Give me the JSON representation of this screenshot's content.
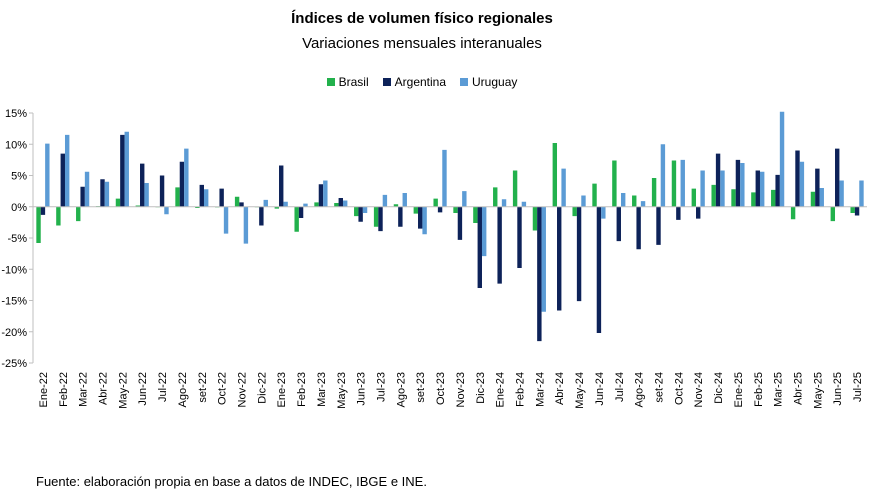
{
  "title": "Índices de volumen físico regionales",
  "subtitle": "Variaciones mensuales interanuales",
  "source": "Fuente: elaboración propia en base a datos de INDEC, IBGE e INE.",
  "colors": {
    "Brasil": "#22b14c",
    "Argentina": "#0d2259",
    "Uruguay": "#5b9bd5"
  },
  "chart_data": {
    "type": "bar",
    "title": "Índices de volumen físico regionales",
    "subtitle": "Variaciones mensuales interanuales",
    "ylim": [
      -25,
      15
    ],
    "yticks": [
      "15%",
      "10%",
      "5%",
      "0%",
      "-5%",
      "-10%",
      "-15%",
      "-20%",
      "-25%"
    ],
    "ytick_values": [
      15,
      10,
      5,
      0,
      -5,
      -10,
      -15,
      -20,
      -25
    ],
    "legend_position": "top-center",
    "grid": false,
    "categories": [
      "Ene-22",
      "Feb-22",
      "Mar-22",
      "Abr-22",
      "May-22",
      "Jun-22",
      "Jul-22",
      "Ago-22",
      "set-22",
      "Oct-22",
      "Nov-22",
      "Dic-22",
      "Ene-23",
      "Feb-23",
      "Mar-23",
      "May-23",
      "Jun-23",
      "Jul-23",
      "Ago-23",
      "set-23",
      "Oct-23",
      "Nov-23",
      "Dic-23",
      "Ene-24",
      "Feb-24",
      "Mar-24",
      "Abr-24",
      "May-24",
      "Jun-24",
      "Jul-24",
      "Ago-24",
      "set-24",
      "Oct-24",
      "Nov-24",
      "Dic-24",
      "Ene-25",
      "Feb-25",
      "Mar-25",
      "Abr-25",
      "May-25",
      "Jun-25",
      "Jul-25"
    ],
    "series": [
      {
        "name": "Brasil",
        "values": [
          -5.8,
          -3.0,
          -2.3,
          0.1,
          1.3,
          0.2,
          0.0,
          3.1,
          -0.2,
          -0.1,
          1.6,
          0.0,
          -0.3,
          -4.0,
          0.7,
          0.6,
          -1.5,
          -3.2,
          0.4,
          -1.1,
          1.3,
          -1.0,
          -2.6,
          3.1,
          5.8,
          -3.8,
          10.2,
          -1.5,
          3.7,
          7.4,
          1.8,
          4.6,
          7.4,
          2.9,
          3.5,
          2.8,
          2.3,
          2.7,
          -2.0,
          2.4,
          -2.3,
          -1.0
        ]
      },
      {
        "name": "Argentina",
        "values": [
          -1.3,
          8.5,
          3.2,
          4.4,
          11.5,
          6.9,
          5.0,
          7.2,
          3.5,
          2.9,
          0.7,
          -3.0,
          6.6,
          -1.8,
          3.6,
          1.4,
          -2.4,
          -3.9,
          -3.2,
          -3.5,
          -0.9,
          -5.3,
          -13.0,
          -12.3,
          -9.8,
          -21.5,
          -16.6,
          -15.1,
          -20.2,
          -5.5,
          -6.8,
          -6.1,
          -2.1,
          -1.9,
          8.5,
          7.5,
          5.8,
          5.1,
          9.0,
          6.1,
          9.3,
          -1.4
        ]
      },
      {
        "name": "Uruguay",
        "values": [
          10.1,
          11.5,
          5.6,
          4.0,
          12.0,
          3.8,
          -1.2,
          9.3,
          2.8,
          -4.3,
          -5.9,
          1.1,
          0.8,
          0.5,
          4.2,
          1.0,
          -1.0,
          1.9,
          2.2,
          -4.4,
          9.1,
          2.5,
          -7.9,
          1.2,
          0.8,
          -16.8,
          6.1,
          1.8,
          -1.9,
          2.2,
          0.9,
          10.0,
          7.5,
          5.8,
          5.8,
          7.0,
          5.6,
          15.2,
          7.2,
          3.0,
          4.2,
          4.2
        ]
      }
    ]
  }
}
